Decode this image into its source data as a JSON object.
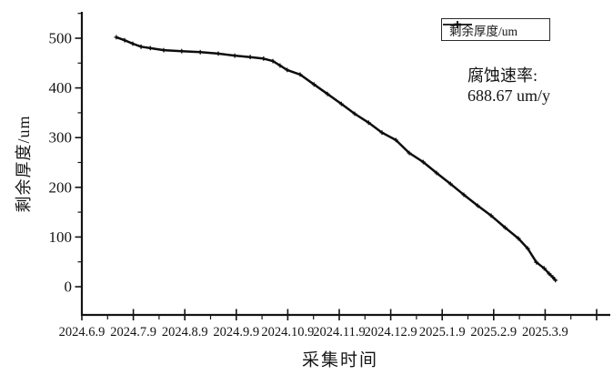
{
  "figure": {
    "background": "#ffffff",
    "ink_color": "#141414",
    "line_color": "#0d0d0d"
  },
  "legend": {
    "label": "剩余厚度/um",
    "marker": "plus-on-line"
  },
  "annotation": {
    "line1": "腐蚀速率:",
    "line2": "688.67 um/y"
  },
  "chart_data": {
    "type": "line",
    "title": "",
    "xlabel": "采集时间",
    "ylabel": "剩余厚度/um",
    "x_tick_labels": [
      "2024.6.9",
      "2024.7.9",
      "2024.8.9",
      "2024.9.9",
      "2024.10.9",
      "2024.11.9",
      "2024.12.9",
      "2025.1.9",
      "2025.2.9",
      "2025.3.9"
    ],
    "x_unit": "months since 2024.6.9 (tick index 0-9)",
    "xlim": [
      0,
      10.3
    ],
    "ylim": [
      0,
      500
    ],
    "y_ticks": [
      0,
      100,
      200,
      300,
      400,
      500
    ],
    "y_minor_step": 50,
    "x_minor_step": 0.5,
    "grid": false,
    "legend_position": "top-right",
    "series": [
      {
        "name": "剩余厚度/um",
        "marker": "plus",
        "color": "#0d0d0d",
        "points": [
          [
            0.67,
            502
          ],
          [
            0.83,
            496
          ],
          [
            0.99,
            489
          ],
          [
            1.15,
            483
          ],
          [
            1.33,
            480
          ],
          [
            1.59,
            476
          ],
          [
            1.94,
            474
          ],
          [
            2.3,
            472
          ],
          [
            2.65,
            469
          ],
          [
            2.97,
            465
          ],
          [
            3.27,
            462
          ],
          [
            3.53,
            459
          ],
          [
            3.71,
            454
          ],
          [
            3.85,
            445
          ],
          [
            3.99,
            436
          ],
          [
            4.24,
            427
          ],
          [
            4.51,
            407
          ],
          [
            4.77,
            388
          ],
          [
            5.04,
            368
          ],
          [
            5.3,
            348
          ],
          [
            5.57,
            330
          ],
          [
            5.83,
            310
          ],
          [
            6.1,
            295
          ],
          [
            6.36,
            269
          ],
          [
            6.63,
            251
          ],
          [
            6.89,
            229
          ],
          [
            7.16,
            207
          ],
          [
            7.42,
            185
          ],
          [
            7.69,
            163
          ],
          [
            7.95,
            143
          ],
          [
            8.22,
            119
          ],
          [
            8.48,
            97
          ],
          [
            8.66,
            77
          ],
          [
            8.83,
            49
          ],
          [
            8.98,
            37
          ],
          [
            9.08,
            26
          ],
          [
            9.15,
            19
          ],
          [
            9.2,
            13
          ]
        ]
      }
    ]
  }
}
